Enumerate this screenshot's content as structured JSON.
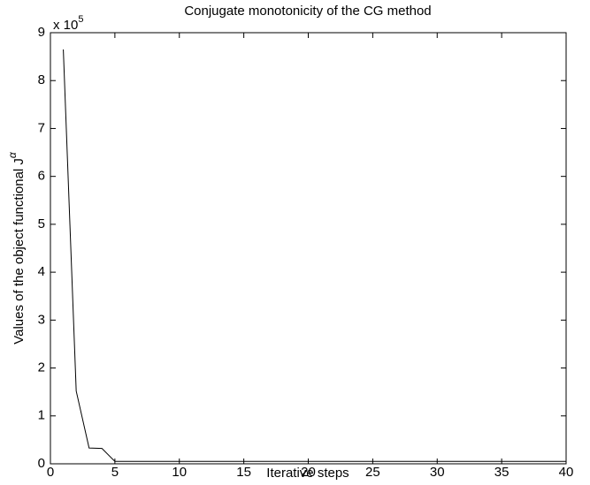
{
  "chart_data": {
    "type": "line",
    "title": "Conjugate monotonicity of the CG method",
    "xlabel": "Iterative steps",
    "ylabel": "Values of the object functional J",
    "ylabel_superscript": "α",
    "y_scale_label": "x 10",
    "y_scale_exponent": "5",
    "x": [
      1,
      2,
      3,
      4,
      5,
      6,
      7,
      8,
      9,
      10,
      11,
      12,
      13,
      14,
      15,
      16,
      17,
      18,
      19,
      20,
      21,
      22,
      23,
      24,
      25,
      26,
      27,
      28,
      29,
      30,
      31,
      32,
      33,
      34,
      35,
      36,
      37,
      38,
      39,
      40
    ],
    "series": [
      {
        "color": "#000000",
        "values": [
          8.65,
          1.52,
          0.33,
          0.32,
          0.05,
          0.05,
          0.05,
          0.05,
          0.05,
          0.05,
          0.05,
          0.05,
          0.05,
          0.05,
          0.05,
          0.05,
          0.05,
          0.05,
          0.05,
          0.05,
          0.05,
          0.05,
          0.05,
          0.05,
          0.05,
          0.05,
          0.05,
          0.05,
          0.05,
          0.05,
          0.05,
          0.05,
          0.05,
          0.05,
          0.05,
          0.05,
          0.05,
          0.05,
          0.05,
          0.05
        ]
      }
    ],
    "xlim": [
      0,
      40
    ],
    "xticks": [
      0,
      5,
      10,
      15,
      20,
      25,
      30,
      35,
      40
    ],
    "ylim": [
      0,
      9
    ],
    "yticks": [
      0,
      1,
      2,
      3,
      4,
      5,
      6,
      7,
      8,
      9
    ]
  }
}
